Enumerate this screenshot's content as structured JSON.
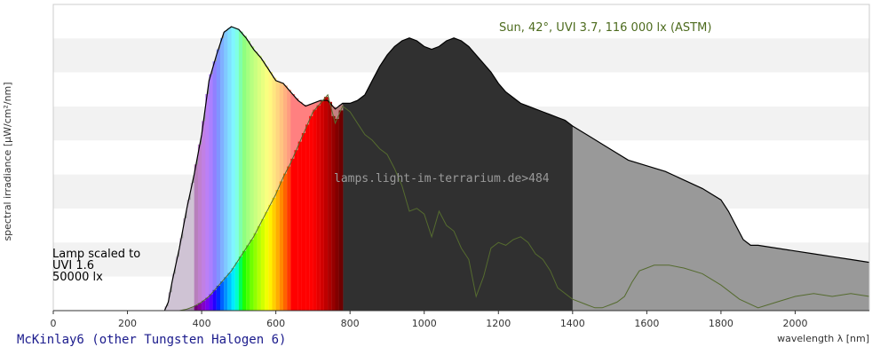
{
  "chart_data": {
    "type": "area",
    "title": "Sun, 42°, UVI 3.7, 116 000 lx (ASTM)",
    "xlabel": "wavelength λ [nm]",
    "ylabel": "spectral irradiance [µW/cm²/nm]",
    "xlim": [
      0,
      2200
    ],
    "x_ticks": [
      0,
      200,
      400,
      600,
      800,
      1000,
      1200,
      1400,
      1600,
      1800,
      2000
    ],
    "y_scale": "relative",
    "ylim": [
      0,
      1.0
    ],
    "grid": "horizontal bands",
    "watermark": "lamps.light-im-terrarium.de>484",
    "annotation_lines": [
      "Lamp scaled to",
      "UVI 1.6",
      "50000 lx"
    ],
    "colors": {
      "sun_fill": "#999999",
      "sun_visible_fill": "#303030",
      "sun_outline": "#000000",
      "lamp_line": "#556b2f",
      "band": "#f2f2f2"
    },
    "series": [
      {
        "x": [
          300,
          310,
          320,
          340,
          360,
          380,
          400,
          420,
          440,
          460,
          480,
          500,
          520,
          540,
          560,
          580,
          600,
          620,
          640,
          660,
          680,
          700,
          720,
          740,
          760,
          780,
          800,
          820,
          840,
          860,
          880,
          900,
          920,
          940,
          960,
          980,
          1000,
          1020,
          1040,
          1060,
          1080,
          1100,
          1120,
          1140,
          1160,
          1180,
          1200,
          1220,
          1240,
          1260,
          1280,
          1300,
          1320,
          1340,
          1360,
          1380,
          1400,
          1450,
          1500,
          1550,
          1600,
          1650,
          1700,
          1750,
          1800,
          1820,
          1840,
          1860,
          1880,
          1900,
          1950,
          2000,
          2050,
          2100,
          2150,
          2200
        ],
        "y": [
          0.0,
          0.03,
          0.1,
          0.22,
          0.36,
          0.48,
          0.62,
          0.81,
          0.9,
          0.98,
          1.0,
          0.99,
          0.96,
          0.92,
          0.89,
          0.85,
          0.81,
          0.8,
          0.77,
          0.74,
          0.72,
          0.73,
          0.74,
          0.74,
          0.71,
          0.73,
          0.73,
          0.74,
          0.76,
          0.81,
          0.86,
          0.9,
          0.93,
          0.95,
          0.96,
          0.95,
          0.93,
          0.92,
          0.93,
          0.95,
          0.96,
          0.95,
          0.93,
          0.9,
          0.87,
          0.84,
          0.8,
          0.77,
          0.75,
          0.73,
          0.72,
          0.71,
          0.7,
          0.69,
          0.68,
          0.67,
          0.65,
          0.61,
          0.57,
          0.53,
          0.51,
          0.49,
          0.46,
          0.43,
          0.39,
          0.35,
          0.3,
          0.25,
          0.23,
          0.23,
          0.22,
          0.21,
          0.2,
          0.19,
          0.18,
          0.17
        ]
      },
      {
        "x": [
          300,
          340,
          360,
          380,
          400,
          420,
          440,
          460,
          480,
          500,
          520,
          540,
          560,
          580,
          600,
          620,
          640,
          660,
          680,
          700,
          720,
          740,
          760,
          780,
          800,
          820,
          840,
          860,
          880,
          900,
          920,
          940,
          960,
          980,
          1000,
          1020,
          1040,
          1060,
          1080,
          1100,
          1120,
          1140,
          1160,
          1180,
          1200,
          1220,
          1240,
          1260,
          1280,
          1300,
          1320,
          1340,
          1360,
          1380,
          1400,
          1420,
          1440,
          1460,
          1480,
          1500,
          1520,
          1540,
          1560,
          1580,
          1600,
          1620,
          1640,
          1660,
          1700,
          1750,
          1800,
          1850,
          1900,
          1950,
          2000,
          2050,
          2100,
          2150,
          2200
        ],
        "y": [
          0.0,
          0.0,
          0.005,
          0.015,
          0.03,
          0.05,
          0.08,
          0.11,
          0.14,
          0.18,
          0.22,
          0.26,
          0.31,
          0.36,
          0.41,
          0.47,
          0.52,
          0.58,
          0.64,
          0.7,
          0.73,
          0.76,
          0.66,
          0.72,
          0.7,
          0.66,
          0.62,
          0.6,
          0.57,
          0.55,
          0.5,
          0.44,
          0.35,
          0.36,
          0.34,
          0.26,
          0.35,
          0.3,
          0.28,
          0.22,
          0.18,
          0.05,
          0.12,
          0.22,
          0.24,
          0.23,
          0.25,
          0.26,
          0.24,
          0.2,
          0.18,
          0.14,
          0.08,
          0.06,
          0.04,
          0.03,
          0.02,
          0.01,
          0.01,
          0.02,
          0.03,
          0.05,
          0.1,
          0.14,
          0.15,
          0.16,
          0.16,
          0.16,
          0.15,
          0.13,
          0.09,
          0.04,
          0.01,
          0.03,
          0.05,
          0.06,
          0.05,
          0.06,
          0.05
        ]
      }
    ]
  },
  "caption": "McKinlay6 (other Tungsten Halogen 6)"
}
